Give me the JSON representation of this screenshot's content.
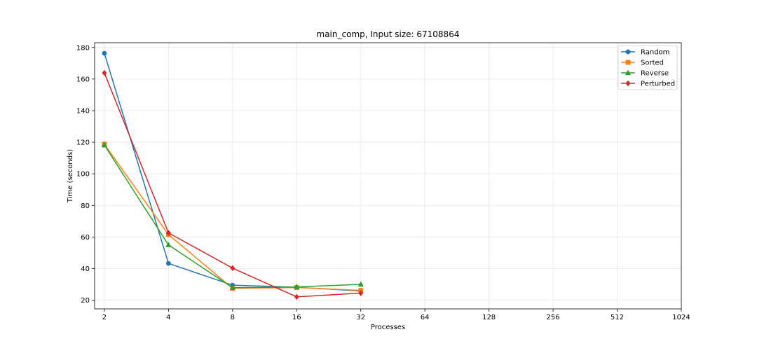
{
  "chart_data": {
    "type": "line",
    "title": "main_comp, Input size: 67108864",
    "xlabel": "Processes",
    "ylabel": "Time (seconds)",
    "x_scale": "log2",
    "x_ticks": [
      2,
      4,
      8,
      16,
      32,
      64,
      128,
      256,
      512,
      1024
    ],
    "x_tick_labels": [
      "2",
      "4",
      "8",
      "16",
      "32",
      "64",
      "128",
      "256",
      "512",
      "1024"
    ],
    "y_ticks": [
      20,
      40,
      60,
      80,
      100,
      120,
      140,
      160,
      180
    ],
    "y_tick_labels": [
      "20",
      "40",
      "60",
      "80",
      "100",
      "120",
      "140",
      "160",
      "180"
    ],
    "xlim": [
      1.8,
      1024
    ],
    "ylim": [
      14.5,
      183
    ],
    "grid": true,
    "legend_position": "top-right",
    "series": [
      {
        "name": "Random",
        "color": "#1f77b4",
        "marker": "circle",
        "x": [
          2,
          4,
          8,
          16,
          32
        ],
        "values": [
          176.3,
          43.3,
          29.5,
          28.2,
          25.8
        ]
      },
      {
        "name": "Sorted",
        "color": "#ff7f0e",
        "marker": "square",
        "x": [
          2,
          4,
          8,
          16,
          32
        ],
        "values": [
          118.8,
          61.5,
          27.5,
          28.0,
          26.2
        ]
      },
      {
        "name": "Reverse",
        "color": "#2ca02c",
        "marker": "triangle",
        "x": [
          2,
          4,
          8,
          16,
          32
        ],
        "values": [
          118.2,
          55.0,
          27.9,
          28.4,
          30.0
        ]
      },
      {
        "name": "Perturbed",
        "color": "#d62728",
        "marker": "diamond",
        "x": [
          2,
          4,
          8,
          16,
          32
        ],
        "values": [
          163.9,
          62.6,
          40.3,
          22.1,
          24.5
        ]
      }
    ]
  }
}
